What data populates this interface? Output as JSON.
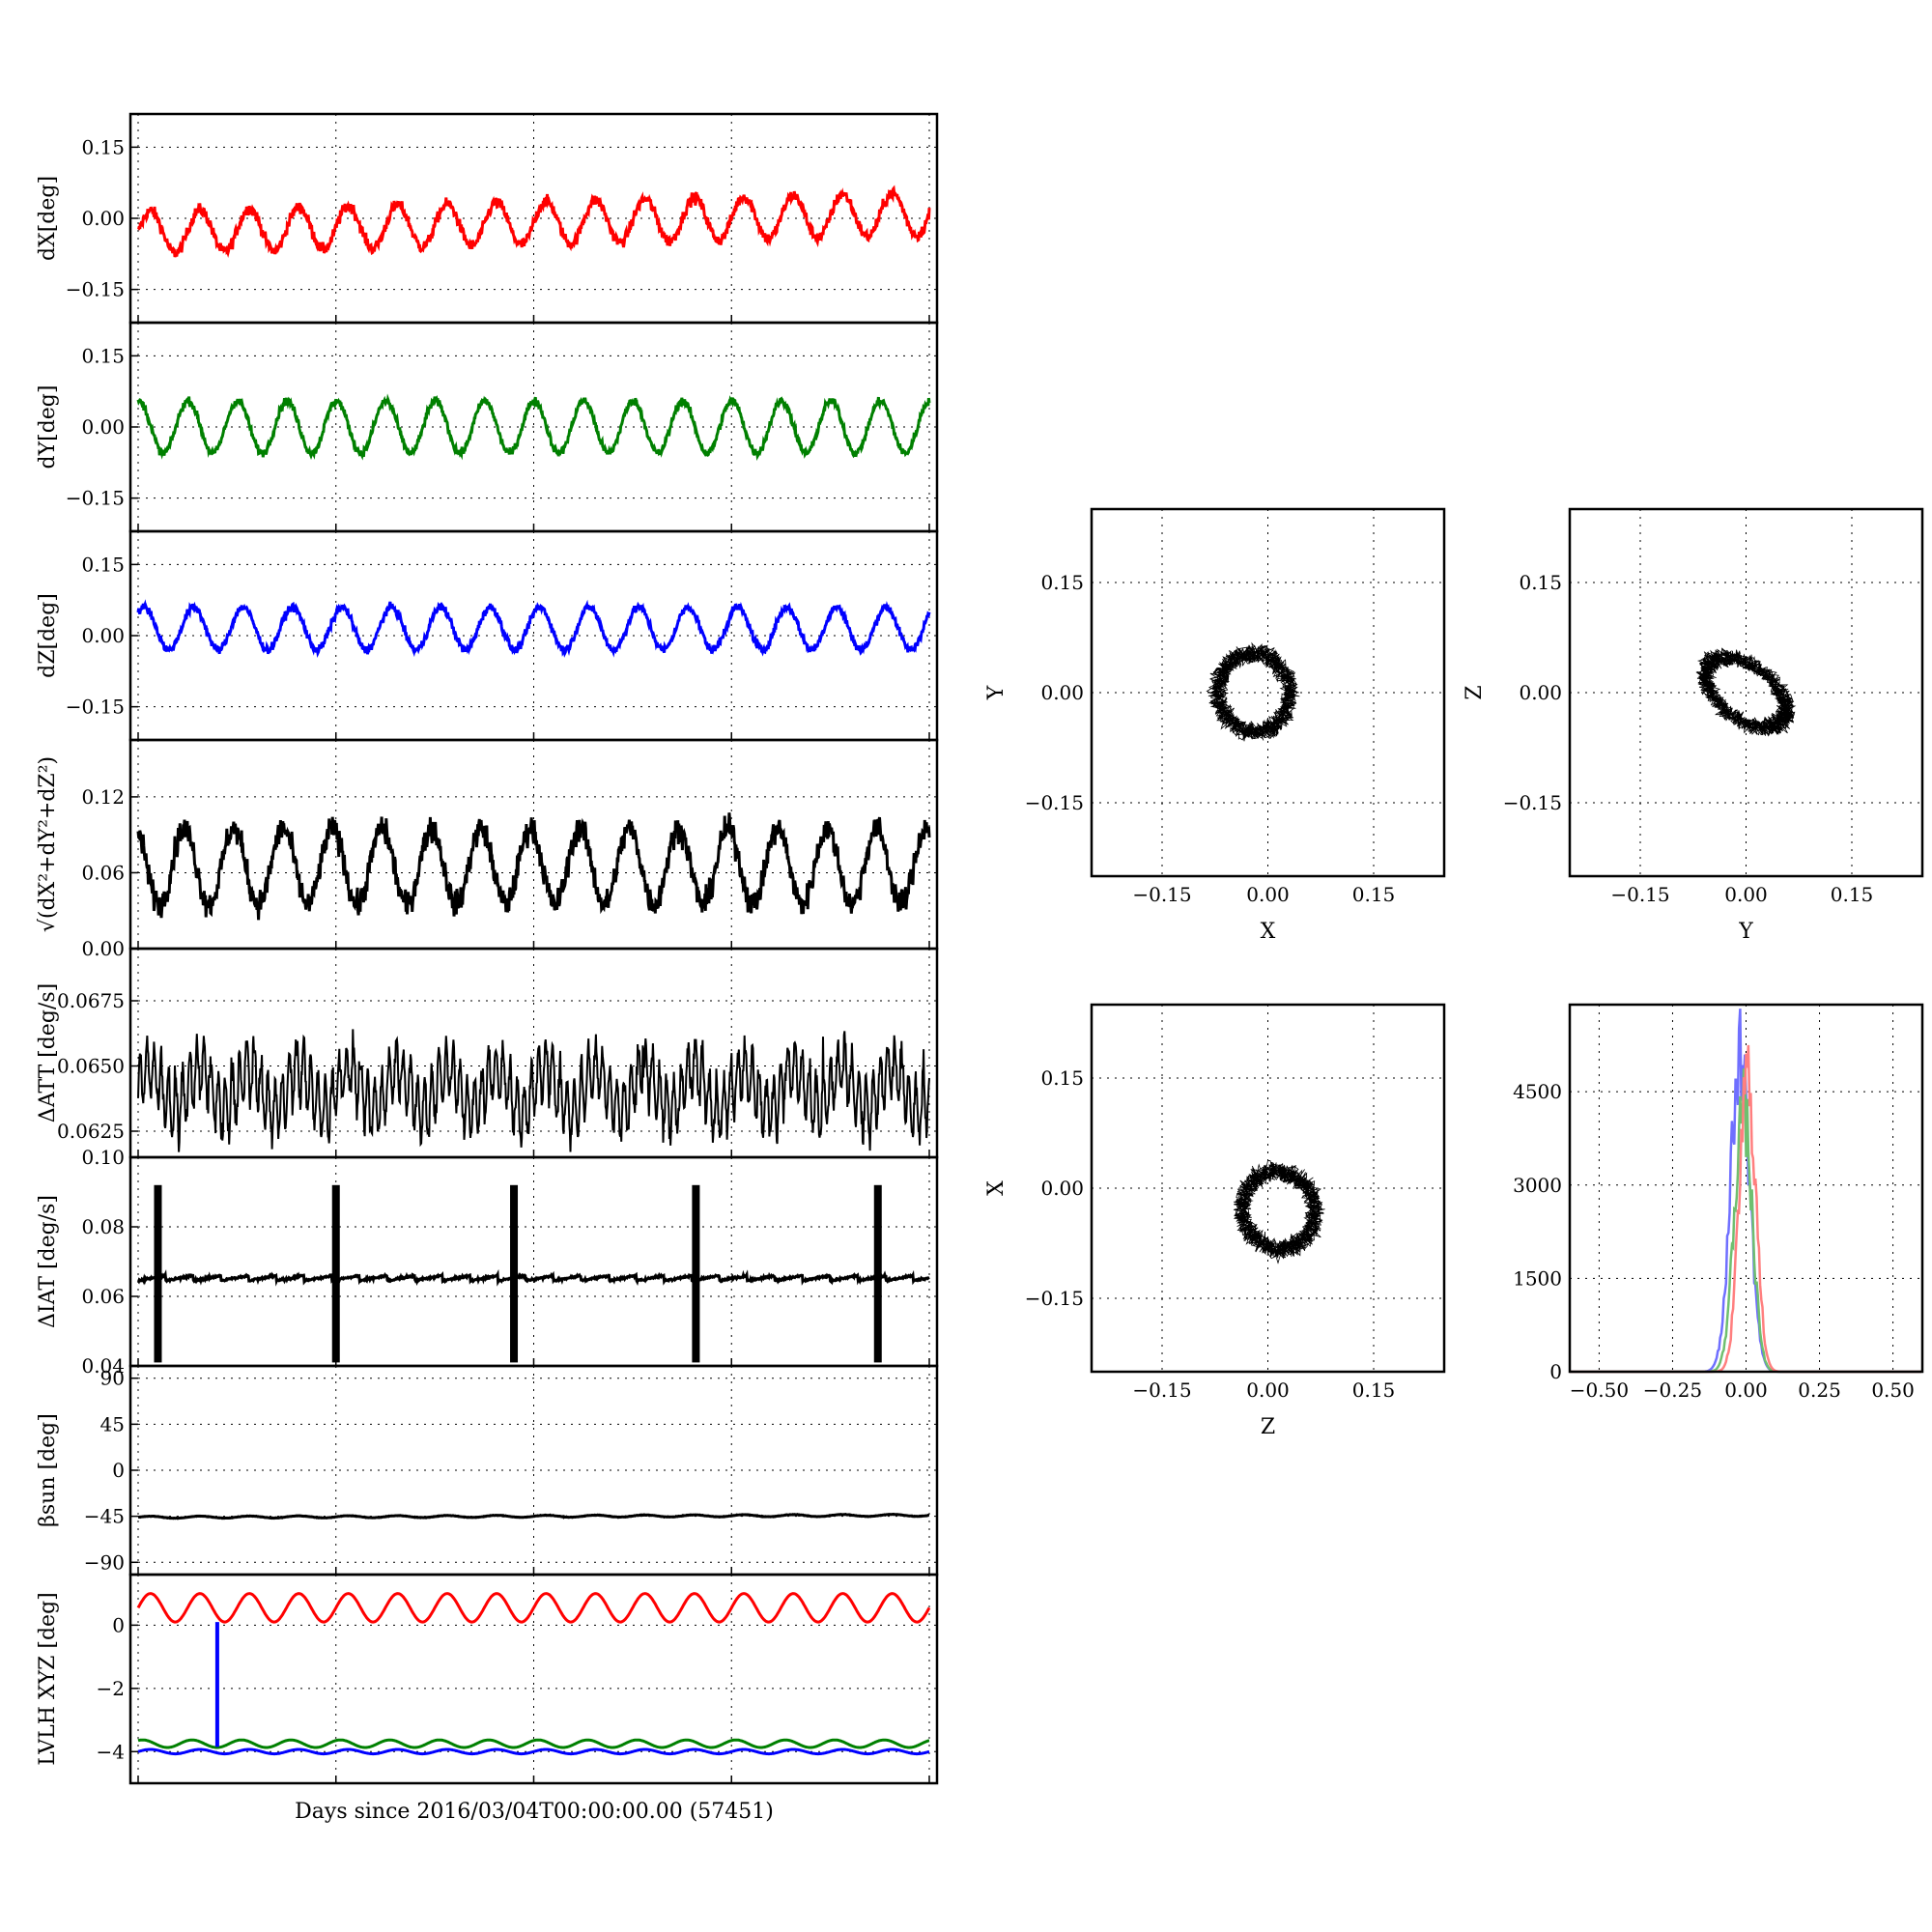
{
  "figure": {
    "time_xlabel": "Days since 2016/03/04T00:00:00.00 (57451)"
  },
  "chart_data": [
    {
      "id": "dx",
      "type": "line",
      "ylabel": "dX[deg]",
      "ylim": [
        -0.22,
        0.22
      ],
      "yticks": [
        -0.15,
        0.0,
        0.15
      ],
      "ytick_labels": [
        "−0.15",
        "0.00",
        "0.15"
      ],
      "x_range": [
        0,
        20
      ],
      "grid": true,
      "series": [
        {
          "color": "#ff0000",
          "mean": -0.03,
          "amp": 0.045,
          "period": 1.25,
          "phase": 0.0,
          "noise": 0.012,
          "drift": 0.04
        }
      ]
    },
    {
      "id": "dy",
      "type": "line",
      "ylabel": "dY[deg]",
      "ylim": [
        -0.22,
        0.22
      ],
      "yticks": [
        -0.15,
        0.0,
        0.15
      ],
      "ytick_labels": [
        "−0.15",
        "0.00",
        "0.15"
      ],
      "x_range": [
        0,
        20
      ],
      "grid": true,
      "series": [
        {
          "color": "#008000",
          "mean": 0.0,
          "amp": 0.055,
          "period": 1.25,
          "phase": 1.5,
          "noise": 0.008,
          "drift": 0.0
        }
      ]
    },
    {
      "id": "dz",
      "type": "line",
      "ylabel": "dZ[deg]",
      "ylim": [
        -0.22,
        0.22
      ],
      "yticks": [
        -0.15,
        0.0,
        0.15
      ],
      "ytick_labels": [
        "−0.15",
        "0.00",
        "0.15"
      ],
      "x_range": [
        0,
        20
      ],
      "grid": true,
      "series": [
        {
          "color": "#0000ff",
          "mean": 0.015,
          "amp": 0.045,
          "period": 1.25,
          "phase": 0.8,
          "noise": 0.008,
          "drift": 0.0
        }
      ]
    },
    {
      "id": "dmag",
      "type": "line",
      "ylabel": "√(dX²+dY²+dZ²)",
      "ylim": [
        0.0,
        0.165
      ],
      "yticks": [
        0.0,
        0.06,
        0.12
      ],
      "ytick_labels": [
        "0.00",
        "0.06",
        "0.12"
      ],
      "x_range": [
        0,
        20
      ],
      "grid": true,
      "series": [
        {
          "color": "#000000",
          "mean": 0.065,
          "amp": 0.03,
          "period": 1.25,
          "phase": 2.0,
          "noise": 0.01,
          "drift": 0.0
        }
      ]
    },
    {
      "id": "datt",
      "type": "line",
      "ylabel": "ΔATT [deg/s]",
      "ylim": [
        0.0615,
        0.0695
      ],
      "yticks": [
        0.0625,
        0.065,
        0.0675
      ],
      "ytick_labels": [
        "0.0625",
        "0.0650",
        "0.0675"
      ],
      "x_range": [
        0,
        20
      ],
      "grid": true,
      "series": [
        {
          "color": "#000000",
          "mean": 0.0641,
          "amp": 0.0011,
          "period": 0.18,
          "phase": 0.0,
          "noise": 0.0005,
          "drift": 0.0
        }
      ]
    },
    {
      "id": "diat",
      "type": "line",
      "ylabel": "ΔIAT [deg/s]",
      "ylim": [
        0.04,
        0.1
      ],
      "yticks": [
        0.04,
        0.06,
        0.08,
        0.1
      ],
      "ytick_labels": [
        "0.04",
        "0.06",
        "0.08",
        "0.10"
      ],
      "x_range": [
        0,
        20
      ],
      "grid": true,
      "series": [
        {
          "color": "#000000",
          "mean": 0.0645,
          "amp": 0.0015,
          "period": 0.7,
          "phase": 0.0,
          "noise": 0.0003,
          "drift": 0.0
        }
      ],
      "spikes": [
        0.5,
        5.0,
        9.5,
        14.1,
        18.7
      ]
    },
    {
      "id": "beta",
      "type": "line",
      "ylabel": "βsun [deg]",
      "ylim": [
        -102,
        102
      ],
      "yticks": [
        -90,
        -45,
        0,
        45,
        90
      ],
      "ytick_labels": [
        "−90",
        "−45",
        "0",
        "45",
        "90"
      ],
      "x_range": [
        0,
        20
      ],
      "grid": true,
      "series": [
        {
          "color": "#000000",
          "mean": -46,
          "amp": 1.0,
          "period": 1.25,
          "phase": 0.0,
          "noise": 0.2,
          "drift": 2.0
        }
      ]
    },
    {
      "id": "lvlh",
      "type": "line",
      "ylabel": "LVLH XYZ [deg]",
      "ylim": [
        -5.0,
        1.6
      ],
      "yticks": [
        -4,
        -2,
        0
      ],
      "ytick_labels": [
        "−4",
        "−2",
        "0"
      ],
      "x_range": [
        0,
        20
      ],
      "grid": true,
      "series": [
        {
          "color": "#ff0000",
          "mean": 0.55,
          "amp": 0.45,
          "period": 1.25,
          "phase": 0.0,
          "noise": 0.0,
          "drift": 0.0
        },
        {
          "color": "#008000",
          "mean": -3.75,
          "amp": 0.12,
          "period": 1.25,
          "phase": 1.0,
          "noise": 0.0,
          "drift": 0.0
        },
        {
          "color": "#0000ff",
          "mean": -4.0,
          "amp": 0.07,
          "period": 1.25,
          "phase": 0.0,
          "noise": 0.0,
          "drift": 0.0
        }
      ],
      "spike": {
        "x": 2.0,
        "from": 0.1,
        "to": -3.85,
        "color": "#0000ff"
      }
    },
    {
      "id": "xy",
      "type": "scatter",
      "xlabel": "X",
      "ylabel": "Y",
      "xlim": [
        -0.25,
        0.25
      ],
      "ylim": [
        -0.25,
        0.25
      ],
      "ticks": [
        -0.15,
        0.0,
        0.15
      ],
      "tick_labels": [
        "−0.15",
        "0.00",
        "0.15"
      ],
      "grid": true,
      "cloud": {
        "cx": -0.02,
        "cy": 0.0,
        "rx": 0.055,
        "ry": 0.058,
        "rot": 0.3,
        "color": "#000000"
      }
    },
    {
      "id": "yz",
      "type": "scatter",
      "xlabel": "Y",
      "ylabel": "Z",
      "xlim": [
        -0.25,
        0.25
      ],
      "ylim": [
        -0.25,
        0.25
      ],
      "ticks": [
        -0.15,
        0.0,
        0.15
      ],
      "tick_labels": [
        "−0.15",
        "0.00",
        "0.15"
      ],
      "grid": true,
      "cloud": {
        "cx": 0.0,
        "cy": 0.0,
        "rx": 0.07,
        "ry": 0.04,
        "rot": -0.6,
        "color": "#000000"
      }
    },
    {
      "id": "zx",
      "type": "scatter",
      "xlabel": "Z",
      "ylabel": "X",
      "xlim": [
        -0.25,
        0.25
      ],
      "ylim": [
        -0.25,
        0.25
      ],
      "ticks": [
        -0.15,
        0.0,
        0.15
      ],
      "tick_labels": [
        "−0.15",
        "0.00",
        "0.15"
      ],
      "grid": true,
      "cloud": {
        "cx": 0.015,
        "cy": -0.03,
        "rx": 0.055,
        "ry": 0.058,
        "rot": 0.6,
        "color": "#000000"
      }
    },
    {
      "id": "hist",
      "type": "line",
      "xlim": [
        -0.6,
        0.6
      ],
      "ylim": [
        0,
        5900
      ],
      "xticks": [
        -0.5,
        -0.25,
        0.0,
        0.25,
        0.5
      ],
      "xtick_labels": [
        "−0.50",
        "−0.25",
        "0.00",
        "0.25",
        "0.50"
      ],
      "yticks": [
        0,
        1500,
        3000,
        4500
      ],
      "ytick_labels": [
        "0",
        "1500",
        "3000",
        "4500"
      ],
      "grid": true,
      "series": [
        {
          "color": "#6f6fff",
          "center": -0.02,
          "sigma": 0.032,
          "peak": 5300
        },
        {
          "color": "#6fbf6f",
          "center": -0.01,
          "sigma": 0.03,
          "peak": 4400
        },
        {
          "color": "#ff7f7f",
          "center": 0.005,
          "sigma": 0.028,
          "peak": 4900
        }
      ]
    }
  ]
}
